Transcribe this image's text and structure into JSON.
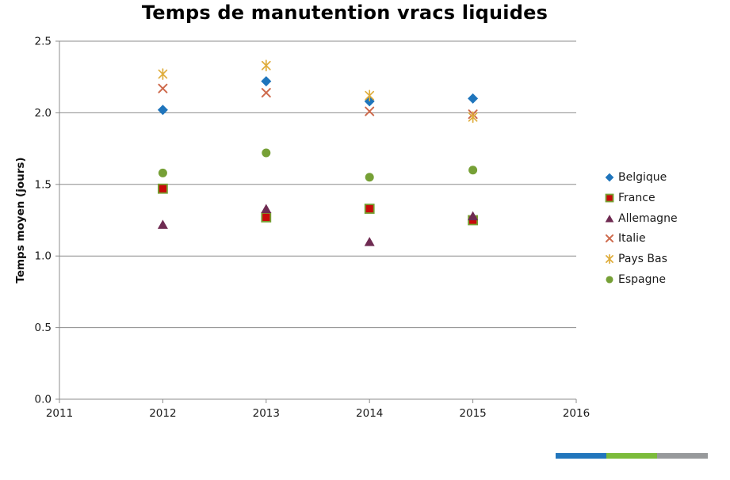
{
  "chart_data": {
    "type": "scatter",
    "title": "Temps de manutention vracs liquides",
    "xlabel": "",
    "ylabel": "Temps moyen (jours)",
    "xlim": [
      2011,
      2016
    ],
    "ylim": [
      0.0,
      2.5
    ],
    "xticks": [
      2011,
      2012,
      2013,
      2014,
      2015,
      2016
    ],
    "yticks": [
      0.0,
      0.5,
      1.0,
      1.5,
      2.0,
      2.5
    ],
    "grid": "horizontal",
    "legend_position": "right",
    "x": [
      2012,
      2013,
      2014,
      2015
    ],
    "series": [
      {
        "name": "Belgique",
        "marker": "diamond",
        "color": "#1F75BC",
        "values": [
          2.02,
          2.22,
          2.08,
          2.1
        ]
      },
      {
        "name": "France",
        "marker": "square",
        "color": "#C80A0A",
        "border_color": "#76A033",
        "values": [
          1.47,
          1.27,
          1.33,
          1.25
        ]
      },
      {
        "name": "Allemagne",
        "marker": "triangle",
        "color": "#6F2B52",
        "values": [
          1.22,
          1.33,
          1.1,
          1.28
        ]
      },
      {
        "name": "Italie",
        "marker": "x",
        "color": "#CE6A4C",
        "values": [
          2.17,
          2.14,
          2.01,
          1.99
        ]
      },
      {
        "name": "Pays Bas",
        "marker": "asterisk",
        "color": "#DFAD3C",
        "values": [
          2.27,
          2.33,
          2.12,
          1.97
        ]
      },
      {
        "name": "Espagne",
        "marker": "circle",
        "color": "#76A036",
        "values": [
          1.58,
          1.72,
          1.55,
          1.6
        ]
      }
    ]
  },
  "colors": {
    "gridline": "#8C8C8C",
    "axis_text": "#1A1A1A",
    "background": "#FFFFFF"
  },
  "bottom_bar": {
    "segments": [
      {
        "name": "blue",
        "color": "#2276BC"
      },
      {
        "name": "green",
        "color": "#7CBB3B"
      },
      {
        "name": "gray",
        "color": "#97999B"
      }
    ]
  }
}
